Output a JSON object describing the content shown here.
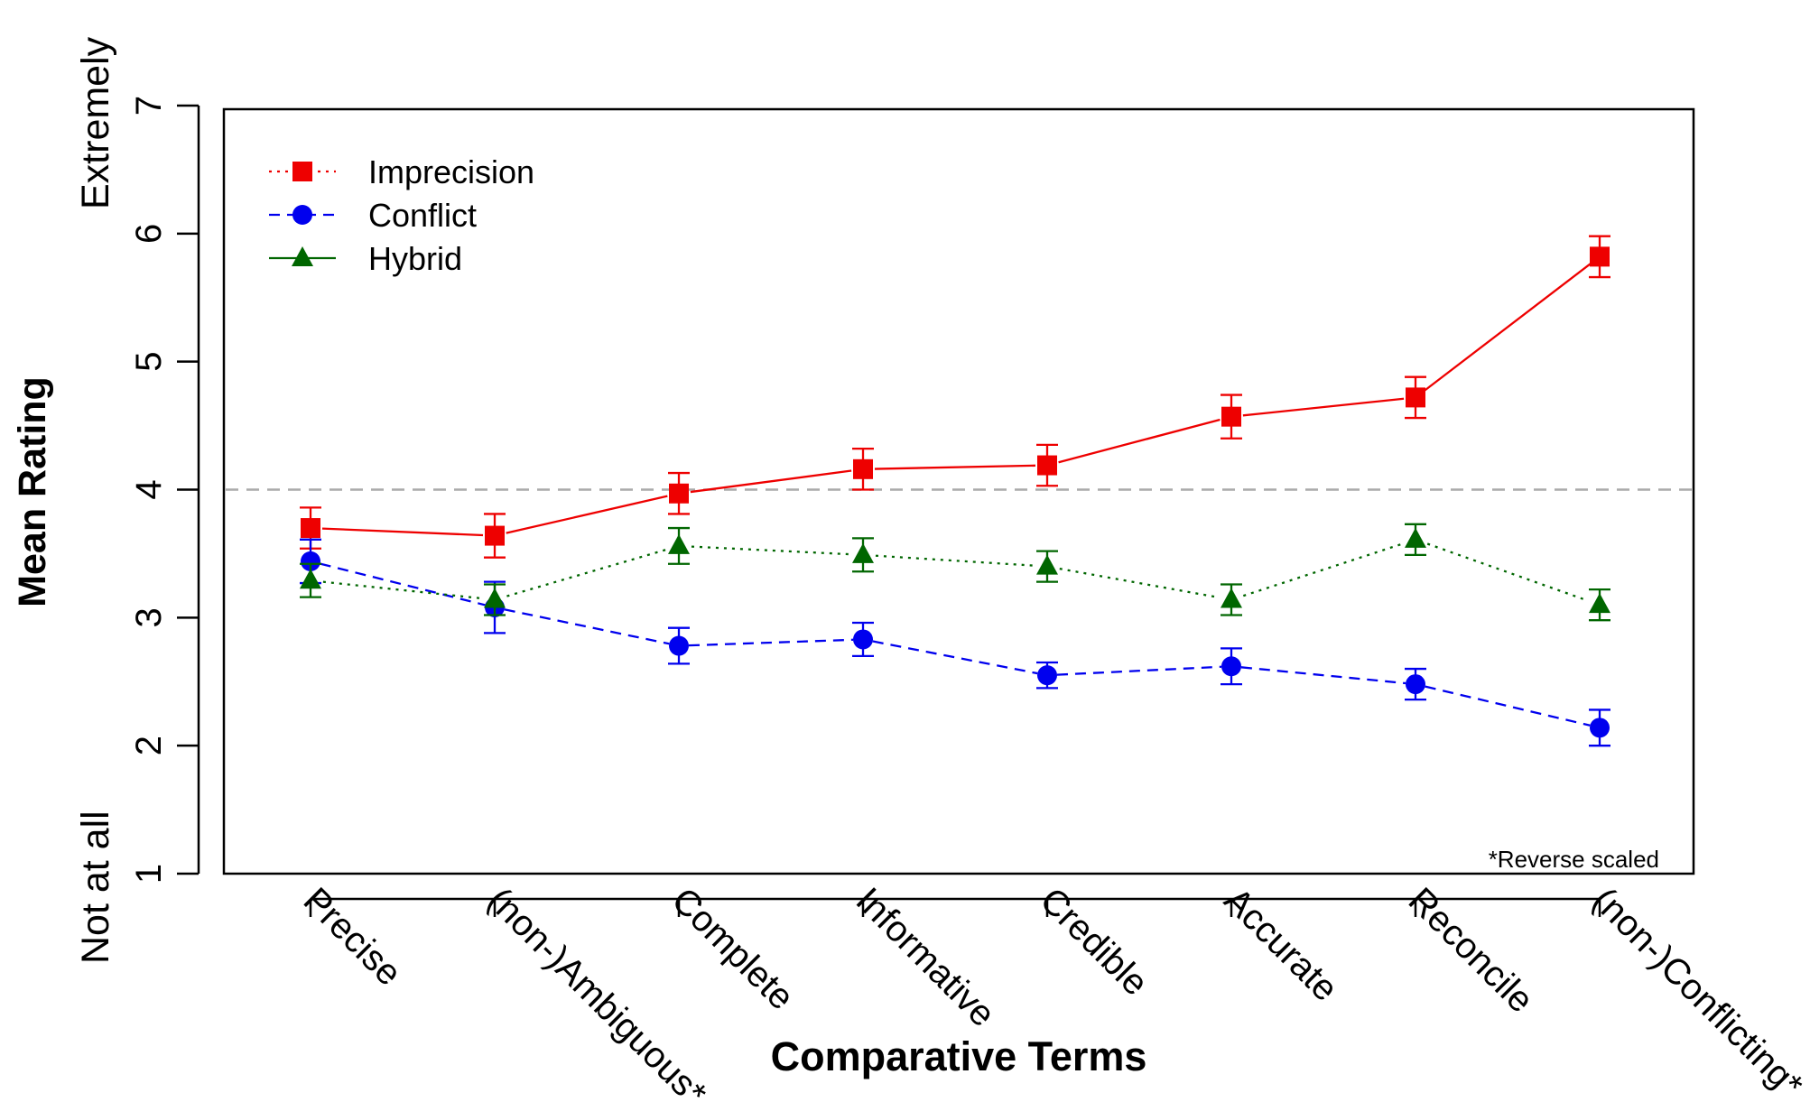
{
  "chart_data": {
    "type": "line",
    "xlabel": "Comparative Terms",
    "ylabel": "Mean Rating",
    "y_anchor_low": "Not at all",
    "y_anchor_high": "Extremely",
    "ylim": [
      1,
      7
    ],
    "yticks": [
      "1",
      "2",
      "3",
      "4",
      "5",
      "6",
      "7"
    ],
    "categories": [
      "Precise",
      "(non-)Ambiguous*",
      "Complete",
      "Informative",
      "Credible",
      "Accurate",
      "Reconcile",
      "(non-)Conflicting*"
    ],
    "reference_line": 4,
    "note": "*Reverse scaled",
    "legend_position": "top-left",
    "series": [
      {
        "name": "Imprecision",
        "color": "#ee0000",
        "marker": "square",
        "legend_line": "dotted",
        "values": [
          3.7,
          3.64,
          3.97,
          4.16,
          4.19,
          4.57,
          4.72,
          5.82
        ],
        "err": [
          0.16,
          0.17,
          0.16,
          0.16,
          0.16,
          0.17,
          0.16,
          0.16
        ]
      },
      {
        "name": "Conflict",
        "color": "#0000ee",
        "marker": "circle",
        "legend_line": "dashed",
        "values": [
          3.44,
          3.08,
          2.78,
          2.83,
          2.55,
          2.62,
          2.48,
          2.14
        ],
        "err": [
          0.17,
          0.2,
          0.14,
          0.13,
          0.1,
          0.14,
          0.12,
          0.14
        ]
      },
      {
        "name": "Hybrid",
        "color": "#006600",
        "marker": "triangle",
        "legend_line": "solid",
        "values": [
          3.29,
          3.14,
          3.56,
          3.49,
          3.4,
          3.14,
          3.61,
          3.1
        ],
        "err": [
          0.13,
          0.12,
          0.14,
          0.13,
          0.12,
          0.12,
          0.12,
          0.12
        ]
      }
    ]
  }
}
